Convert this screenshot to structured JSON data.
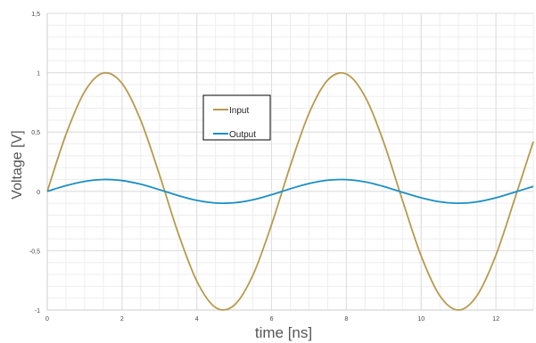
{
  "chart_data": {
    "type": "line",
    "xlabel": "time [ns]",
    "ylabel": "Voltage [V]",
    "xlim": [
      0,
      13
    ],
    "ylim": [
      -1,
      1.5
    ],
    "x_ticks": [
      0,
      2,
      4,
      6,
      8,
      10,
      12
    ],
    "x_tick_labels": [
      "0",
      "2",
      "4",
      "6",
      "8",
      "10",
      "12"
    ],
    "y_ticks": [
      -1,
      -0.5,
      0,
      0.5,
      1,
      1.5
    ],
    "y_tick_labels": [
      "-1",
      "-0,5",
      "0",
      "0,5",
      "1",
      "1,5"
    ],
    "grid": true,
    "legend_position": "upper-middle",
    "x": [
      0,
      0.5,
      1,
      1.5,
      2,
      2.5,
      3,
      3.5,
      4,
      4.5,
      5,
      5.5,
      6,
      6.5,
      7,
      7.5,
      8,
      8.5,
      9,
      9.5,
      10,
      10.5,
      11,
      11.5,
      12,
      12.5,
      13
    ],
    "series": [
      {
        "name": "Input",
        "color": "#b89a4e",
        "values": [
          0,
          0.479,
          0.841,
          0.997,
          0.909,
          0.598,
          0.141,
          -0.351,
          -0.757,
          -0.978,
          -0.959,
          -0.706,
          -0.279,
          0.215,
          0.657,
          0.938,
          0.989,
          0.798,
          0.412,
          -0.075,
          -0.544,
          -0.88,
          -1.0,
          -0.875,
          -0.537,
          -0.066,
          0.42
        ]
      },
      {
        "name": "Output",
        "color": "#1a8fc4",
        "values": [
          0,
          0.048,
          0.084,
          0.1,
          0.091,
          0.06,
          0.014,
          -0.035,
          -0.076,
          -0.098,
          -0.096,
          -0.071,
          -0.028,
          0.022,
          0.066,
          0.094,
          0.099,
          0.08,
          0.041,
          -0.008,
          -0.054,
          -0.088,
          -0.1,
          -0.088,
          -0.054,
          -0.007,
          0.042
        ]
      }
    ]
  }
}
